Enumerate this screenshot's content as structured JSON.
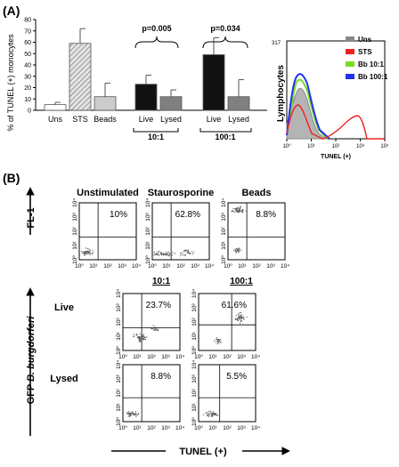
{
  "figure": {
    "panel_a_label": "(A)",
    "panel_b_label": "(B)"
  },
  "chart_data": [
    {
      "type": "bar",
      "ylabel": "% of TUNEL (+) monocytes",
      "ylim": [
        0,
        80
      ],
      "yticks": [
        0,
        10,
        20,
        30,
        40,
        50,
        60,
        70,
        80
      ],
      "categories": [
        "Uns",
        "STS",
        "Beads",
        "Live",
        "Lysed",
        "Live",
        "Lysed"
      ],
      "group_labels": [
        "10:1",
        "100:1"
      ],
      "values": [
        5,
        59,
        12,
        23,
        12,
        49,
        12
      ],
      "errors": [
        2,
        13,
        12,
        8,
        6,
        15,
        15
      ],
      "fills": [
        "#ffffff",
        "hatched-gray",
        "#cccccc",
        "#111111",
        "#808080",
        "#111111",
        "#808080"
      ],
      "annotations": [
        "p=0.005",
        "p=0.034"
      ]
    },
    {
      "type": "line",
      "xlabel": "TUNEL (+)",
      "ylabel": "Lymphocytes",
      "ymax_label": "317",
      "xticks": [
        "10⁰",
        "10¹",
        "10²",
        "10³",
        "10⁴"
      ],
      "series": [
        {
          "name": "Uns",
          "color": "#888888"
        },
        {
          "name": "STS",
          "color": "#ee2222"
        },
        {
          "name": "Bb 10:1",
          "color": "#77dd22"
        },
        {
          "name": "Bb 100:1",
          "color": "#2233ee"
        }
      ],
      "legend": "right"
    },
    {
      "type": "scatter",
      "axis_ticks": [
        "10⁰",
        "10¹",
        "10²",
        "10³",
        "10⁴"
      ],
      "row1_ylabel": "FL-1",
      "rows23_ylabel_prefix": "GFP",
      "rows23_ylabel_italic": "B. burgdorferi",
      "xlabel": "TUNEL (+)",
      "column_headers": [
        "10:1",
        "100:1"
      ],
      "row_labels": [
        "Live",
        "Lysed"
      ],
      "plots": [
        {
          "title": "Unstimulated",
          "percent": "10%"
        },
        {
          "title": "Staurosporine",
          "percent": "62.8%"
        },
        {
          "title": "Beads",
          "percent": "8.8%"
        },
        {
          "title": "",
          "percent": "23.7%"
        },
        {
          "title": "",
          "percent": "61.6%"
        },
        {
          "title": "",
          "percent": "8.8%"
        },
        {
          "title": "",
          "percent": "5.5%"
        }
      ]
    }
  ]
}
